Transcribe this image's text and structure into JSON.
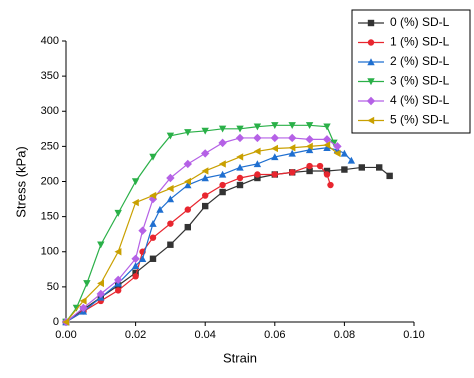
{
  "chart_data": {
    "type": "line",
    "x_label": "Strain",
    "y_label": "Stress (kPa)",
    "xlim": [
      0,
      0.1
    ],
    "xticks": [
      {
        "value": 0,
        "label": "0.00"
      },
      {
        "value": 0.02,
        "label": "0.02"
      },
      {
        "value": 0.04,
        "label": "0.04"
      },
      {
        "value": 0.06,
        "label": "0.06"
      },
      {
        "value": 0.08,
        "label": "0.08"
      },
      {
        "value": 0.1,
        "label": "0.10"
      }
    ],
    "ylim": [
      0,
      400
    ],
    "yticks": [
      0,
      50,
      100,
      150,
      200,
      250,
      300,
      350,
      400
    ],
    "legend": "top-right",
    "series": [
      {
        "name": "0 (%) SD-L",
        "color": "#333333",
        "marker": "square",
        "x": [
          0,
          0.005,
          0.01,
          0.015,
          0.02,
          0.025,
          0.03,
          0.035,
          0.04,
          0.045,
          0.05,
          0.055,
          0.06,
          0.065,
          0.07,
          0.075,
          0.08,
          0.085,
          0.09,
          0.093
        ],
        "values": [
          0,
          18,
          35,
          52,
          70,
          90,
          110,
          135,
          165,
          185,
          195,
          205,
          210,
          213,
          215,
          215,
          217,
          220,
          220,
          208
        ]
      },
      {
        "name": "1 (%) SD-L",
        "color": "#e8262f",
        "marker": "circle",
        "x": [
          0,
          0.005,
          0.01,
          0.015,
          0.02,
          0.022,
          0.025,
          0.03,
          0.035,
          0.04,
          0.045,
          0.05,
          0.055,
          0.06,
          0.065,
          0.07,
          0.073,
          0.075,
          0.076
        ],
        "values": [
          0,
          15,
          30,
          45,
          65,
          100,
          120,
          140,
          160,
          180,
          195,
          205,
          210,
          210,
          213,
          222,
          222,
          210,
          195
        ]
      },
      {
        "name": "2 (%) SD-L",
        "color": "#1f6fd0",
        "marker": "triangle",
        "x": [
          0,
          0.005,
          0.01,
          0.015,
          0.02,
          0.022,
          0.025,
          0.027,
          0.03,
          0.035,
          0.04,
          0.045,
          0.05,
          0.055,
          0.06,
          0.065,
          0.07,
          0.075,
          0.078,
          0.08,
          0.082
        ],
        "values": [
          0,
          15,
          35,
          55,
          80,
          90,
          140,
          160,
          175,
          195,
          205,
          210,
          220,
          225,
          235,
          240,
          245,
          248,
          245,
          240,
          230
        ]
      },
      {
        "name": "3 (%) SD-L",
        "color": "#2ab048",
        "marker": "down-triangle",
        "x": [
          0,
          0.003,
          0.006,
          0.01,
          0.015,
          0.02,
          0.025,
          0.03,
          0.035,
          0.04,
          0.045,
          0.05,
          0.055,
          0.06,
          0.065,
          0.07,
          0.075,
          0.077
        ],
        "values": [
          0,
          20,
          55,
          110,
          155,
          200,
          235,
          265,
          270,
          272,
          275,
          275,
          278,
          280,
          280,
          280,
          278,
          255
        ]
      },
      {
        "name": "4 (%) SD-L",
        "color": "#b561e6",
        "marker": "diamond",
        "x": [
          0,
          0.005,
          0.01,
          0.015,
          0.02,
          0.022,
          0.025,
          0.03,
          0.035,
          0.04,
          0.045,
          0.05,
          0.055,
          0.06,
          0.065,
          0.07,
          0.075,
          0.078
        ],
        "values": [
          0,
          20,
          40,
          60,
          90,
          130,
          175,
          205,
          225,
          240,
          255,
          262,
          262,
          262,
          262,
          260,
          260,
          250
        ]
      },
      {
        "name": "5 (%) SD-L",
        "color": "#c9a000",
        "marker": "left-triangle",
        "x": [
          0,
          0.005,
          0.01,
          0.015,
          0.02,
          0.025,
          0.03,
          0.035,
          0.04,
          0.045,
          0.05,
          0.055,
          0.06,
          0.065,
          0.07,
          0.075,
          0.078
        ],
        "values": [
          0,
          30,
          55,
          100,
          170,
          180,
          190,
          200,
          215,
          225,
          235,
          243,
          247,
          248,
          250,
          252,
          240
        ]
      }
    ]
  }
}
